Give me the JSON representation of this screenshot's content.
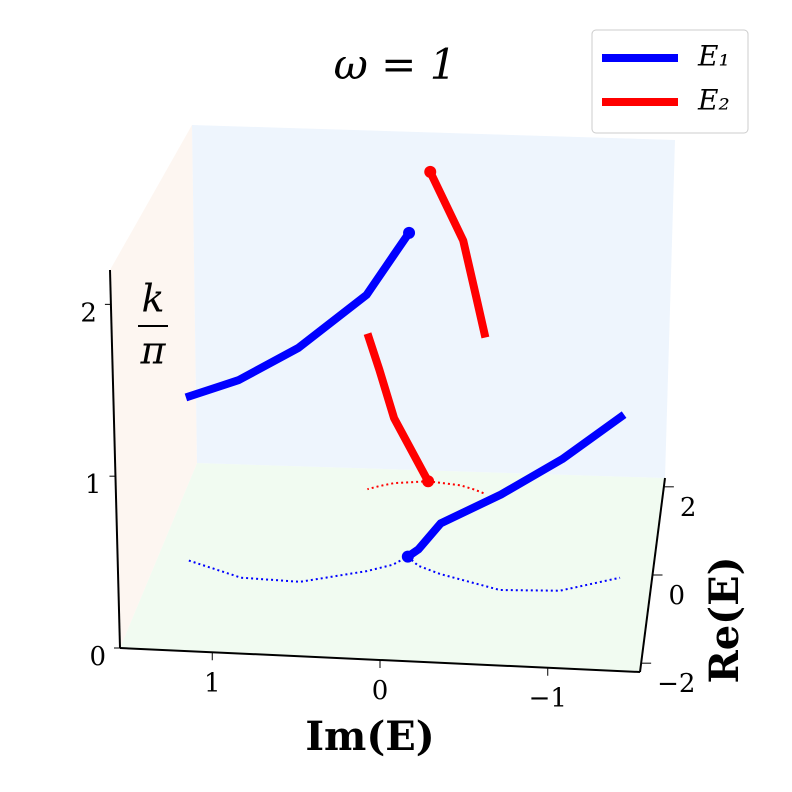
{
  "chart_data": {
    "type": "line3d",
    "title": "ω = 1",
    "x_label": "Im(E)",
    "y_label": "Re(E)",
    "z_label": {
      "numerator": "k",
      "denominator": "π"
    },
    "xlim": [
      1.55,
      -1.55
    ],
    "ylim": [
      -2.2,
      2.2
    ],
    "zlim": [
      0,
      2.2
    ],
    "xticks": [
      1,
      0,
      {
        "value": -1,
        "label": "−1"
      }
    ],
    "yticks": [
      {
        "value": -2,
        "label": "−2"
      },
      0,
      2
    ],
    "zticks": [
      0,
      1,
      2
    ],
    "legend": "upper right",
    "floor_projection": true,
    "series": [
      {
        "name": "E₁",
        "color": "#0000ff",
        "branches": [
          {
            "k": [
              0,
              0.1,
              0.31,
              0.58,
              0.8,
              1.0
            ],
            "im": [
              0.0,
              -0.08,
              -0.23,
              -0.62,
              -0.99,
              -1.35
            ],
            "re": [
              0.2,
              0.0,
              -0.17,
              -0.48,
              -0.44,
              -0.09
            ]
          },
          {
            "k": [
              1.0,
              1.2,
              1.42,
              1.69,
              1.9,
              2.0
            ],
            "im": [
              1.35,
              0.99,
              0.62,
              0.23,
              0.08,
              0.0
            ],
            "re": [
              -0.09,
              -0.44,
              -0.48,
              -0.17,
              0.0,
              0.2
            ]
          }
        ]
      },
      {
        "name": "E₂",
        "color": "#ff0000",
        "branches": [
          {
            "k": [
              0,
              0.42,
              0.75,
              1.0
            ],
            "im": [
              0.0,
              0.22,
              0.31,
              0.38
            ],
            "re": [
              1.95,
              1.88,
              1.8,
              1.72
            ]
          },
          {
            "k": [
              1.0,
              1.25,
              1.58,
              2.0
            ],
            "im": [
              -0.38,
              -0.31,
              -0.22,
              0.0
            ],
            "re": [
              1.72,
              1.8,
              1.88,
              1.95
            ]
          }
        ]
      }
    ]
  }
}
